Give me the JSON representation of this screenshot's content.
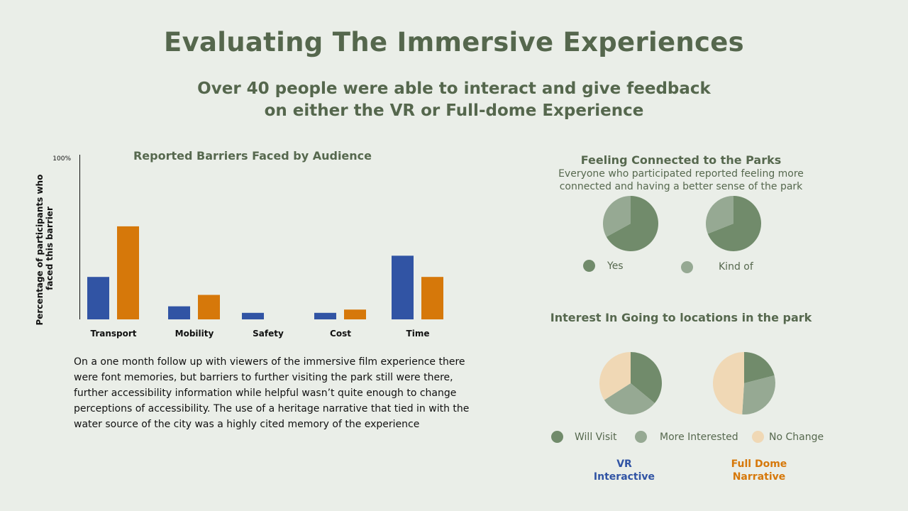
{
  "header": {
    "title": "Evaluating The Immersive Experiences",
    "subtitle": "Over 40 people were able to interact and give feedback\non  either the VR or Full-dome Experience"
  },
  "colors": {
    "vr": "#3154a4",
    "dome": "#d6780a",
    "green_dark": "#718b6b",
    "green_light": "#96a993",
    "peach": "#f0d8b5"
  },
  "chart_data": [
    {
      "type": "bar",
      "title": "Reported Barriers Faced by Audience",
      "ylabel": "Percentage of participants who faced this barrier",
      "ytick_top": "100%",
      "ylim": [
        0,
        100
      ],
      "categories": [
        "Transport",
        "Mobility",
        "Safety",
        "Cost",
        "Time"
      ],
      "series": [
        {
          "values": [
            26,
            8,
            4,
            4,
            39
          ],
          "color": "#3154a4"
        },
        {
          "values": [
            57,
            15,
            0,
            6,
            26
          ],
          "color": "#d6780a"
        }
      ]
    },
    {
      "type": "pie",
      "title": "Feeling Connected to the Parks",
      "note": "Everyone who participated reported feeling more connected and having a better sense of the park",
      "labels": [
        "Yes",
        "Kind of"
      ],
      "colors": [
        "#718b6b",
        "#96a993"
      ],
      "pies": [
        {
          "values": [
            0.67,
            0.33
          ]
        },
        {
          "values": [
            0.69,
            0.31
          ]
        }
      ]
    },
    {
      "type": "pie",
      "title": "Interest In Going to locations in the park",
      "labels": [
        "Will Visit",
        "More Interested",
        "No Change"
      ],
      "colors": [
        "#718b6b",
        "#96a993",
        "#f0d8b5"
      ],
      "pies": [
        {
          "values": [
            0.36,
            0.3,
            0.34
          ]
        },
        {
          "values": [
            0.21,
            0.3,
            0.49
          ]
        }
      ]
    }
  ],
  "paragraph": "On a one month follow up with viewers of the immersive film experience there were font memories, but barriers to further visiting the park still were there, further accessibility information while helpful wasn’t quite enough to change perceptions of accessibility. The use of a heritage narrative that tied in with the water source of the city was a highly cited memory of the experience",
  "captions": {
    "vr": "VR\nInteractive",
    "dome": "Full Dome\nNarrative"
  }
}
